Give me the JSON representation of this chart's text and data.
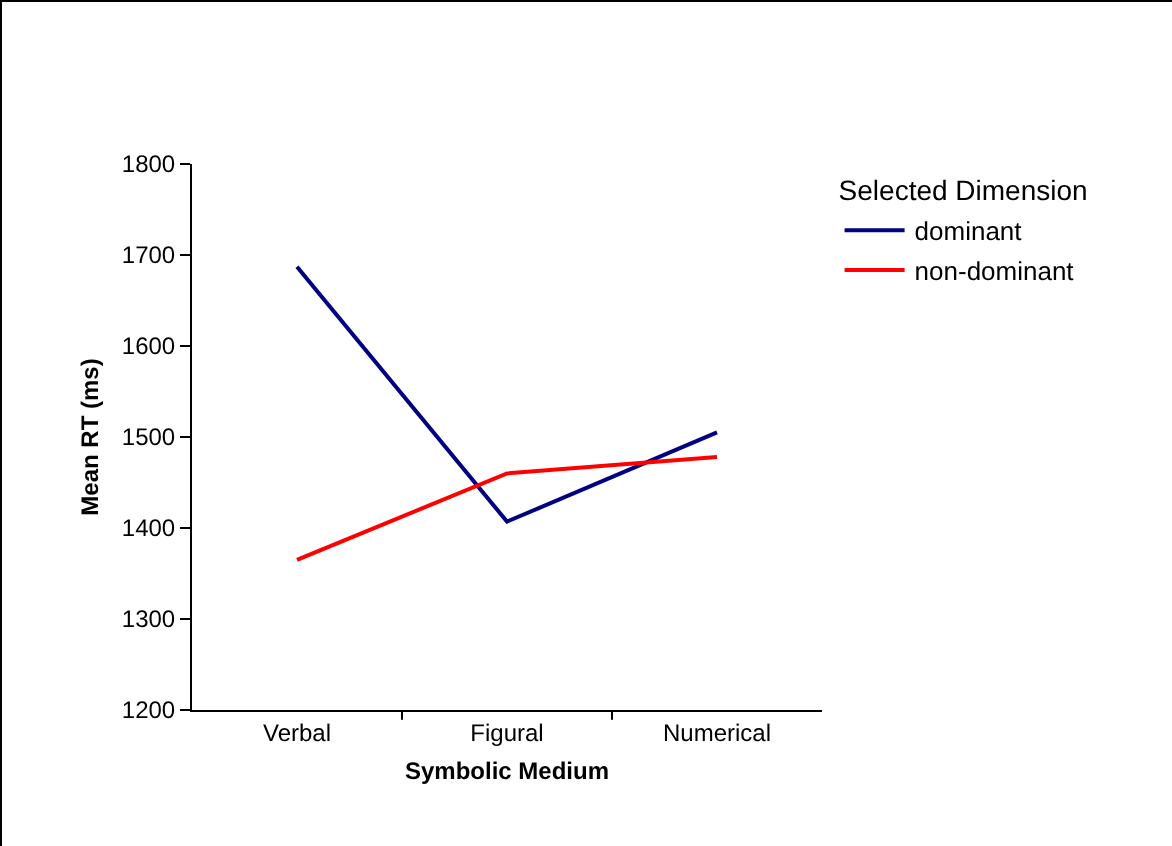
{
  "chart_data": {
    "type": "line",
    "xlabel": "Symbolic Medium",
    "ylabel": "Mean RT (ms)",
    "legend_title": "Selected Dimension",
    "categories": [
      "Verbal",
      "Figural",
      "Numerical"
    ],
    "series": [
      {
        "name": "dominant",
        "color": "#000080",
        "values": [
          1687,
          1407,
          1505
        ]
      },
      {
        "name": "non-dominant",
        "color": "#ff0000",
        "values": [
          1365,
          1460,
          1478
        ]
      }
    ],
    "ylim": [
      1200,
      1800
    ],
    "yticks": [
      1200,
      1300,
      1400,
      1500,
      1600,
      1700,
      1800
    ],
    "grid": false,
    "legend": "top right",
    "marker": "none",
    "line_style": "solid"
  }
}
